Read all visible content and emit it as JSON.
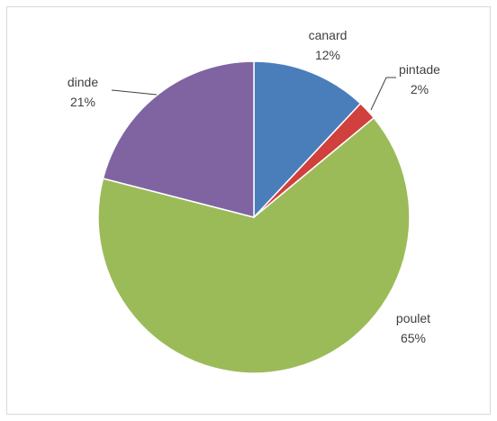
{
  "chart_data": {
    "type": "pie",
    "title": "",
    "slices": [
      {
        "label": "canard",
        "value": 12,
        "percent_label": "12%",
        "color": "#4a7ebb"
      },
      {
        "label": "pintade",
        "value": 2,
        "percent_label": "2%",
        "color": "#d0403c"
      },
      {
        "label": "poulet",
        "value": 65,
        "percent_label": "65%",
        "color": "#9bbb59"
      },
      {
        "label": "dinde",
        "value": 21,
        "percent_label": "21%",
        "color": "#8064a2"
      }
    ],
    "start": "top",
    "direction": "clockwise",
    "legend": "none",
    "data_labels": "outside with leader lines"
  }
}
